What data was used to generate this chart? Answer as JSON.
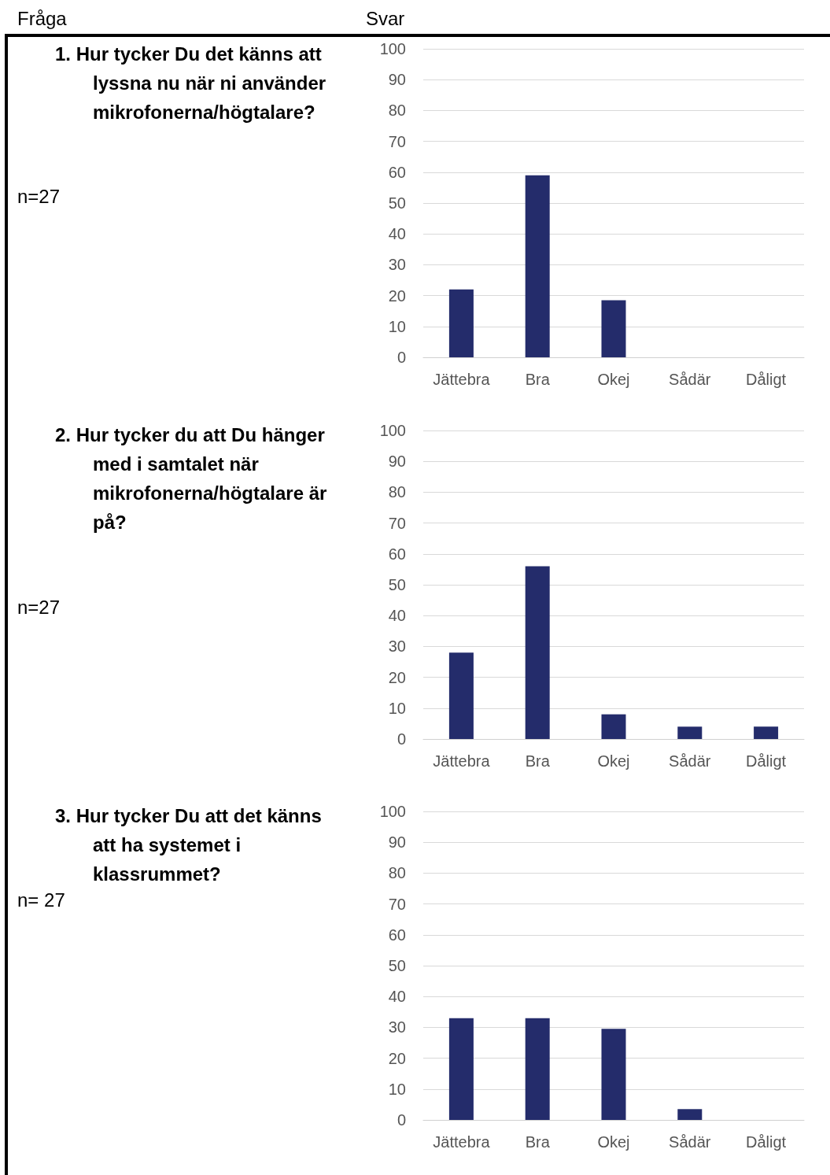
{
  "chart_data": [
    {
      "type": "other",
      "annotations": [
        "Fråga",
        "Svar"
      ]
    },
    {
      "type": "bar",
      "title": "1. Hur tycker Du det känns att lyssna nu när ni använder mikrofonerna/högtalare?",
      "annotations": [
        "n=27"
      ],
      "categories": [
        "Jättebra",
        "Bra",
        "Okej",
        "Sådär",
        "Dåligt"
      ],
      "values": [
        22,
        59,
        18.5,
        0,
        0
      ],
      "color": "#242c6b",
      "ylim": [
        0,
        100
      ],
      "yticks": [
        0,
        10,
        20,
        30,
        40,
        50,
        60,
        70,
        80,
        90,
        100
      ],
      "grid": "y"
    },
    {
      "type": "bar",
      "title": "2. Hur tycker du att Du hänger med i samtalet när mikrofonerna/högtalare är på?",
      "annotations": [
        "n=27"
      ],
      "categories": [
        "Jättebra",
        "Bra",
        "Okej",
        "Sådär",
        "Dåligt"
      ],
      "values": [
        28,
        56,
        8,
        4,
        4
      ],
      "color": "#242c6b",
      "ylim": [
        0,
        100
      ],
      "yticks": [
        0,
        10,
        20,
        30,
        40,
        50,
        60,
        70,
        80,
        90,
        100
      ],
      "grid": "y"
    },
    {
      "type": "bar",
      "title": "3. Hur tycker Du att det känns att ha systemet i klassrummet?",
      "annotations": [
        "n= 27"
      ],
      "categories": [
        "Jättebra",
        "Bra",
        "Okej",
        "Sådär",
        "Dåligt"
      ],
      "values": [
        33,
        33,
        29.5,
        3.5,
        0
      ],
      "color": "#242c6b",
      "ylim": [
        0,
        100
      ],
      "yticks": [
        0,
        10,
        20,
        30,
        40,
        50,
        60,
        70,
        80,
        90,
        100
      ],
      "grid": "y"
    }
  ]
}
